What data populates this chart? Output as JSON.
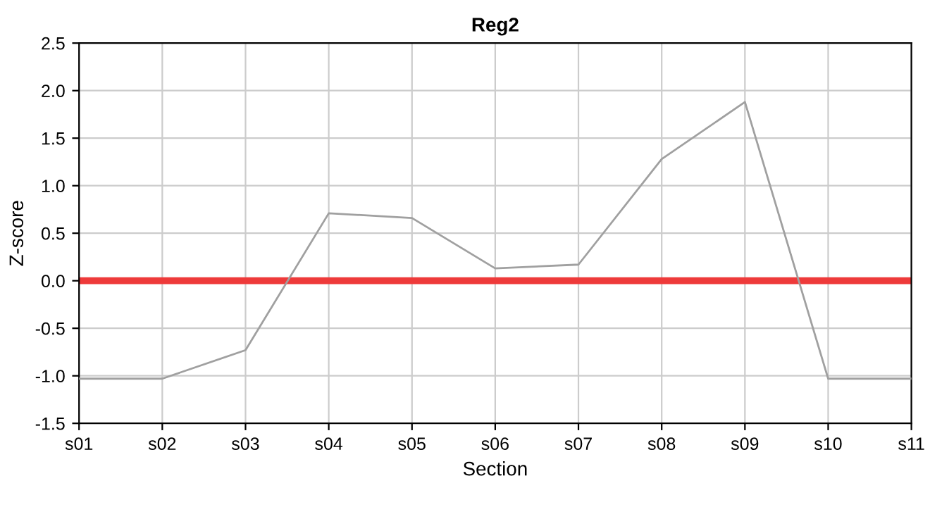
{
  "chart_data": {
    "type": "line",
    "title": "Reg2",
    "xlabel": "Section",
    "ylabel": "Z-score",
    "categories": [
      "s01",
      "s02",
      "s03",
      "s04",
      "s05",
      "s06",
      "s07",
      "s08",
      "s09",
      "s10",
      "s11"
    ],
    "series": [
      {
        "color": "#a0a0a0",
        "values": [
          -1.03,
          -1.03,
          -0.73,
          0.71,
          0.66,
          0.13,
          0.17,
          1.28,
          1.88,
          -1.03,
          -1.03
        ]
      }
    ],
    "ylim": [
      -1.5,
      2.5
    ],
    "yticks": [
      {
        "value": -1.5,
        "label": "-1.5"
      },
      {
        "value": -1.0,
        "label": "-1.0"
      },
      {
        "value": -0.5,
        "label": "-0.5"
      },
      {
        "value": 0.0,
        "label": "0.0"
      },
      {
        "value": 0.5,
        "label": "0.5"
      },
      {
        "value": 1.0,
        "label": "1.0"
      },
      {
        "value": 1.5,
        "label": "1.5"
      },
      {
        "value": 2.0,
        "label": "2.0"
      },
      {
        "value": 2.5,
        "label": "2.5"
      }
    ],
    "ref_lines": [
      {
        "axis": "y",
        "value": 0,
        "label": null,
        "color": "#ee3a3a"
      }
    ],
    "grid": true,
    "legend": false
  }
}
